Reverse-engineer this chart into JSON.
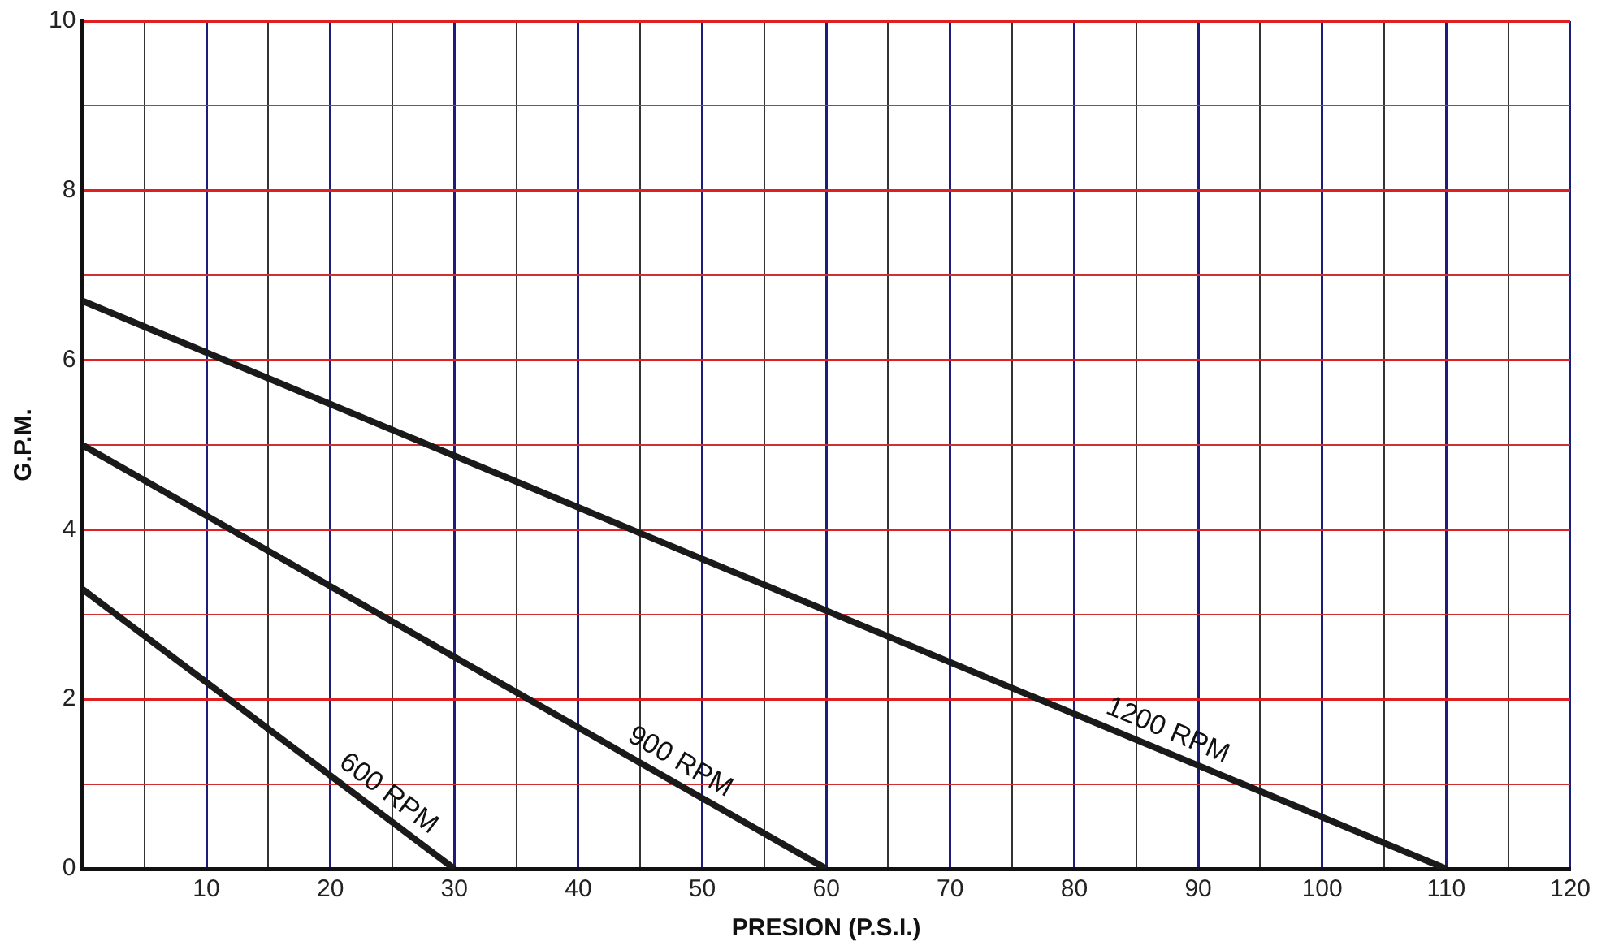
{
  "chart_data": {
    "type": "line",
    "xlabel": "PRESION (P.S.I.)",
    "ylabel": "G.P.M.",
    "xlim": [
      0,
      120
    ],
    "ylim": [
      0,
      10
    ],
    "xticks": [
      {
        "value": 0,
        "label": null
      },
      {
        "value": 5,
        "label": null
      },
      10,
      {
        "value": 15,
        "label": null
      },
      20,
      {
        "value": 25,
        "label": null
      },
      30,
      {
        "value": 35,
        "label": null
      },
      40,
      {
        "value": 45,
        "label": null
      },
      50,
      {
        "value": 55,
        "label": null
      },
      60,
      {
        "value": 65,
        "label": null
      },
      70,
      {
        "value": 75,
        "label": null
      },
      80,
      {
        "value": 85,
        "label": null
      },
      90,
      {
        "value": 95,
        "label": null
      },
      100,
      {
        "value": 105,
        "label": null
      },
      110,
      {
        "value": 115,
        "label": null
      },
      120
    ],
    "yticks": [
      0,
      {
        "value": 1,
        "label": null
      },
      2,
      {
        "value": 3,
        "label": null
      },
      4,
      {
        "value": 5,
        "label": null
      },
      6,
      {
        "value": 7,
        "label": null
      },
      8,
      {
        "value": 9,
        "label": null
      },
      10
    ],
    "grid": true,
    "legend": false,
    "marker": "none",
    "line_style": "solid",
    "series": [
      {
        "name": "600 RPM",
        "color": "#1a1a1a",
        "x": [
          0,
          30
        ],
        "values": [
          3.3,
          0
        ]
      },
      {
        "name": "900 RPM",
        "color": "#1a1a1a",
        "x": [
          0,
          60
        ],
        "values": [
          5,
          0
        ]
      },
      {
        "name": "1200 RPM",
        "color": "#1a1a1a",
        "x": [
          0,
          110
        ],
        "values": [
          6.7,
          0
        ]
      }
    ]
  }
}
